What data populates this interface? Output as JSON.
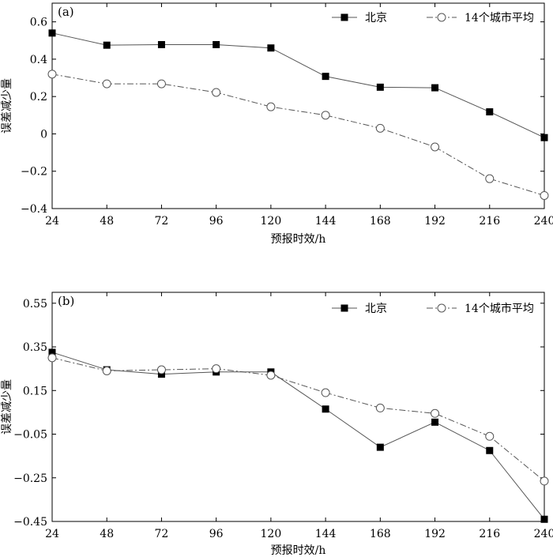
{
  "chart_data": [
    {
      "type": "line",
      "panel_label": "(a)",
      "xlabel": "预报时效/h",
      "ylabel": "误差减少量",
      "x": [
        24,
        48,
        72,
        96,
        120,
        144,
        168,
        192,
        216,
        240
      ],
      "x_tick_labels": [
        "24",
        "48",
        "72",
        "96",
        "120",
        "144",
        "168",
        "192",
        "216",
        "240"
      ],
      "xlim": [
        24,
        240
      ],
      "ylim": [
        -0.4,
        0.7
      ],
      "y_ticks": [
        -0.4,
        -0.2,
        0,
        0.2,
        0.4,
        0.6
      ],
      "y_tick_labels": [
        "−0.4",
        "−0.2",
        "0",
        "0.2",
        "0.4",
        "0.6"
      ],
      "legend_position": "top-right",
      "series": [
        {
          "name": "北京",
          "style": "solid",
          "marker": "filled-square",
          "values": [
            0.54,
            0.475,
            0.478,
            0.478,
            0.46,
            0.308,
            0.25,
            0.247,
            0.118,
            -0.02
          ]
        },
        {
          "name": "14个城市平均",
          "style": "dash-dot",
          "marker": "open-circle",
          "values": [
            0.32,
            0.268,
            0.268,
            0.222,
            0.145,
            0.1,
            0.03,
            -0.07,
            -0.24,
            -0.33
          ]
        }
      ]
    },
    {
      "type": "line",
      "panel_label": "(b)",
      "xlabel": "预报时效/h",
      "ylabel": "误差减少量",
      "x": [
        24,
        48,
        72,
        96,
        120,
        144,
        168,
        192,
        216,
        240
      ],
      "x_tick_labels": [
        "24",
        "48",
        "72",
        "96",
        "120",
        "144",
        "168",
        "192",
        "216",
        "240"
      ],
      "xlim": [
        24,
        240
      ],
      "ylim": [
        -0.45,
        0.6
      ],
      "y_ticks": [
        -0.45,
        -0.25,
        -0.05,
        0.15,
        0.35,
        0.55
      ],
      "y_tick_labels": [
        "−0.45",
        "−0.25",
        "−0.05",
        "0.15",
        "0.35",
        "0.55"
      ],
      "legend_position": "top-right",
      "series": [
        {
          "name": "北京",
          "style": "solid",
          "marker": "filled-square",
          "values": [
            0.325,
            0.245,
            0.225,
            0.235,
            0.235,
            0.065,
            -0.11,
            0.005,
            -0.125,
            -0.44
          ]
        },
        {
          "name": "14个城市平均",
          "style": "dash-dot",
          "marker": "open-circle",
          "values": [
            0.3,
            0.24,
            0.245,
            0.25,
            0.22,
            0.14,
            0.07,
            0.045,
            -0.06,
            -0.265
          ]
        }
      ]
    }
  ]
}
